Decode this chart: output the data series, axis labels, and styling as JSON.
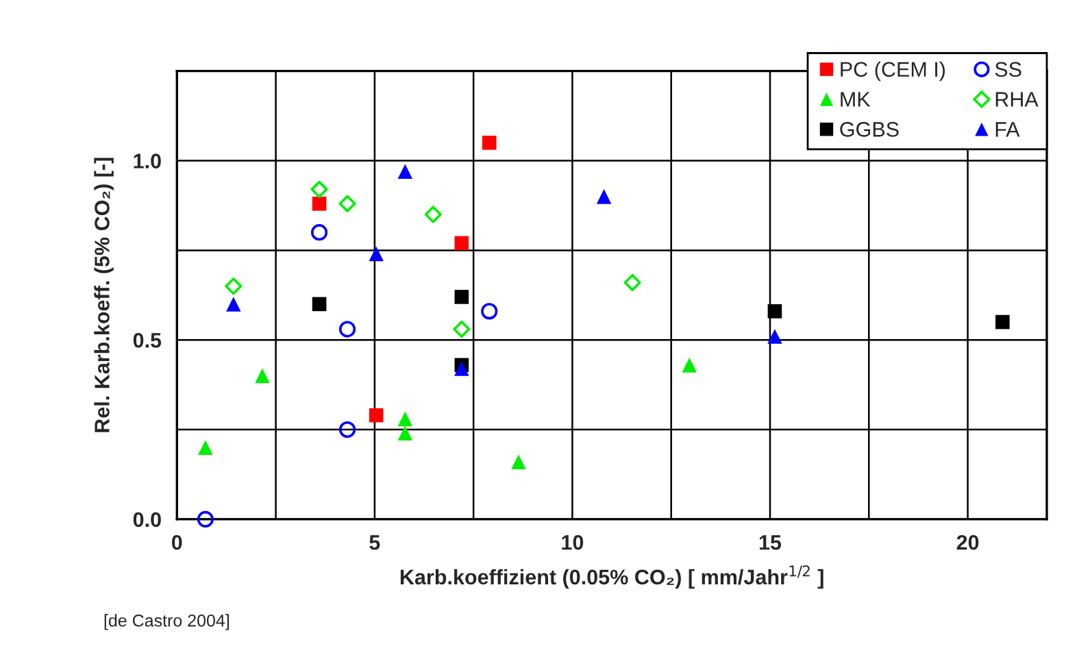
{
  "chart_data": {
    "type": "scatter",
    "xlabel": "Karb.koeffizient (0.05% CO₂) [ mm/Jahr$^{1/2}$ ]",
    "ylabel": "Rel. Karb.koeff. (5% CO₂) [-]",
    "annotations": [
      "[de Castro 2004]"
    ],
    "xlim": [
      0,
      22
    ],
    "xticks": [
      0,
      {
        "value": 2.5,
        "label": null
      },
      5,
      {
        "value": 7.5,
        "label": null
      },
      10,
      {
        "value": 12.5,
        "label": null
      },
      15,
      {
        "value": 17.5,
        "label": null
      },
      20
    ],
    "ylim": [
      0,
      1.25
    ],
    "yticks": [
      {
        "value": 0,
        "label": "0.0"
      },
      {
        "value": 0.25,
        "label": null
      },
      {
        "value": 0.5,
        "label": "0.5"
      },
      {
        "value": 0.75,
        "label": null
      },
      {
        "value": 1.0,
        "label": "1.0"
      }
    ],
    "grid": true,
    "legend": "top right",
    "series": [
      {
        "name": "PC (CEM I)",
        "color": "#ff0000",
        "marker": "square",
        "x": [
          7.9,
          3.6,
          7.2,
          5.04
        ],
        "values": [
          1.05,
          0.88,
          0.77,
          0.29
        ]
      },
      {
        "name": "SS",
        "color": "#0000ff",
        "marker": "circle",
        "x": [
          0.72,
          3.6,
          4.31,
          7.9,
          4.31
        ],
        "values": [
          0.0,
          0.8,
          0.53,
          0.58,
          0.25
        ]
      },
      {
        "name": "MK",
        "color": "#00ee00",
        "marker": "triangle",
        "x": [
          0.72,
          2.16,
          5.77,
          5.77,
          8.64,
          12.96
        ],
        "values": [
          0.2,
          0.4,
          0.28,
          0.24,
          0.16,
          0.43
        ]
      },
      {
        "name": "RHA",
        "color": "#00ee00",
        "marker": "diamond",
        "x": [
          1.43,
          3.6,
          4.31,
          6.48,
          7.2,
          11.52
        ],
        "values": [
          0.65,
          0.92,
          0.88,
          0.85,
          0.53,
          0.66
        ]
      },
      {
        "name": "GGBS",
        "color": "#000000",
        "marker": "square",
        "x": [
          3.6,
          7.2,
          7.2,
          15.12,
          20.88
        ],
        "values": [
          0.6,
          0.62,
          0.43,
          0.58,
          0.55
        ]
      },
      {
        "name": "FA",
        "color": "#0000ff",
        "marker": "triangle",
        "x": [
          1.43,
          5.77,
          5.04,
          7.2,
          10.8,
          15.12
        ],
        "values": [
          0.6,
          0.97,
          0.74,
          0.42,
          0.9,
          0.51
        ]
      }
    ]
  }
}
